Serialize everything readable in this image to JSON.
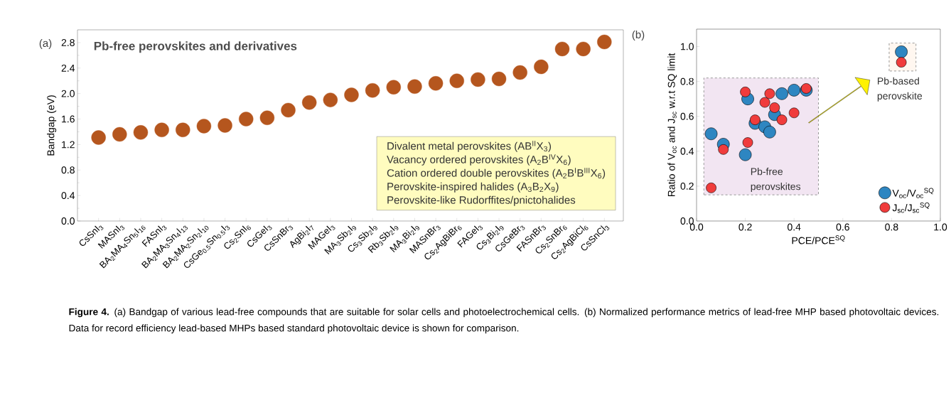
{
  "chart_data": [
    {
      "type": "scatter",
      "title": "Pb-free perovskites and derivatives",
      "ylabel": "Bandgap (eV)",
      "marker": "circle",
      "color": "#b5561e",
      "categories": [
        "CsSnI$_{3}$",
        "MASnI$_{3}$",
        "BA$_{2}$MA$_{4}$Sn$_{5}$I$_{16}$",
        "FASnI$_{3}$",
        "BA$_{2}$MA$_{3}$Sn$_{4}$I$_{13}$",
        "BA$_{2}$MA$_{2}$Sn$_{2}$I$_{10}$",
        "CsGe$_{0.5}$Sn$_{0.5}$I$_{3}$",
        "Cs$_{2}$SnI$_{6}$",
        "CsGeI$_{3}$",
        "CsSnBr$_{3}$",
        "AgBi$_{2}$I$_{7}$",
        "MAGeI$_{3}$",
        "MA$_{3}$Sb$_{2}$I$_{9}$",
        "Cs$_{3}$Sb$_{2}$I$_{9}$",
        "Rb$_{3}$Sb$_{2}$I$_{9}$",
        "MA$_{3}$Bi$_{2}$I$_{9}$",
        "MASnBr$_{3}$",
        "Cs$_{2}$AgBiBr$_{6}$",
        "FAGeI$_{3}$",
        "Cs$_{3}$Bi$_{2}$I$_{9}$",
        "CsGeBr$_{3}$",
        "FASnBr$_{3}$",
        "Cs$_{2}$SnBr$_{6}$",
        "Cs$_{2}$AgBiCl$_{6}$",
        "CsSnCl$_{3}$"
      ],
      "values": [
        1.31,
        1.36,
        1.39,
        1.43,
        1.43,
        1.49,
        1.5,
        1.6,
        1.62,
        1.74,
        1.86,
        1.9,
        1.98,
        2.05,
        2.1,
        2.11,
        2.16,
        2.2,
        2.22,
        2.23,
        2.33,
        2.42,
        2.7,
        2.7,
        2.81
      ],
      "ylim": [
        0,
        3.0
      ],
      "yticks": [
        {
          "value": 0,
          "label": "0.0"
        },
        {
          "value": 0.4,
          "label": "0.4"
        },
        {
          "value": 0.8,
          "label": "0.8"
        },
        {
          "value": 1.2,
          "label": "1.2"
        },
        {
          "value": 1.6,
          "label": "1.6"
        },
        {
          "value": 2.0,
          "label": "2.0"
        },
        {
          "value": 2.4,
          "label": "2.4"
        },
        {
          "value": 2.8,
          "label": "2.8"
        }
      ],
      "annotations": [
        "(a)",
        "Divalent metal perovskites (AB$^{II}$X$_{3}$)",
        "Vacancy ordered perovskites (A$_{2}$B$^{IV}$X$_{6}$)",
        "Cation ordered double perovskites (A$_{2}$B$^{I}$B$^{III}$X$_{6}$)",
        "Perovskite-inspired halides (A$_{3}$B$_{2}$X$_{9}$)",
        "Perovskite-like Rudorffites/pnictohalides",
        "**Figure 4.** (a) Bandgap of various lead-free compounds that are suitable for solar cells and photoelectrochemical cells. (b) Normalized performance metrics of lead-free MHP based photovoltaic devices. Data for record efficiency lead-based MHPs based standard photovoltaic device is shown for comparison."
      ]
    },
    {
      "type": "scatter",
      "xlabel": "PCE/PCE$^{SQ}$",
      "ylabel": "Ratio of V$_{oc}$ and J$_{sc}$ w.r.t SQ limit",
      "marker": "circle",
      "legend": "bottom right",
      "series": [
        {
          "name": "V$_{oc}$/V$_{oc}$$^{SQ}$",
          "color": "#2e86c1",
          "x": [
            0.06,
            0.11,
            0.2,
            0.21,
            0.24,
            0.28,
            0.3,
            0.32,
            0.35,
            0.4,
            0.45,
            0.84
          ],
          "values": [
            0.5,
            0.44,
            0.38,
            0.7,
            0.56,
            0.54,
            0.51,
            0.61,
            0.73,
            0.75,
            0.75,
            0.97
          ]
        },
        {
          "name": "J$_{sc}$/J$_{sc}$$^{SQ}$",
          "color": "#f03c3c",
          "x": [
            0.06,
            0.11,
            0.2,
            0.21,
            0.24,
            0.28,
            0.3,
            0.32,
            0.35,
            0.4,
            0.45,
            0.84
          ],
          "values": [
            0.19,
            0.41,
            0.74,
            0.45,
            0.58,
            0.68,
            0.73,
            0.65,
            0.58,
            0.62,
            0.76,
            0.91
          ]
        }
      ],
      "xlim": [
        0,
        1.0
      ],
      "ylim": [
        0,
        1.1
      ],
      "xticks": [
        {
          "value": 0,
          "label": "0.0"
        },
        {
          "value": 0.2,
          "label": "0.2"
        },
        {
          "value": 0.4,
          "label": "0.4"
        },
        {
          "value": 0.6,
          "label": "0.6"
        },
        {
          "value": 0.8,
          "label": "0.8"
        },
        {
          "value": 1.0,
          "label": "1.0"
        }
      ],
      "yticks": [
        {
          "value": 0,
          "label": "0.0"
        },
        {
          "value": 0.2,
          "label": "0.2"
        },
        {
          "value": 0.4,
          "label": "0.4"
        },
        {
          "value": 0.6,
          "label": "0.6"
        },
        {
          "value": 0.8,
          "label": "0.8"
        },
        {
          "value": 1.0,
          "label": "1.0"
        }
      ],
      "annotations": [
        "(b)",
        "Pb-free perovskites",
        "Pb-based perovskite"
      ]
    }
  ]
}
